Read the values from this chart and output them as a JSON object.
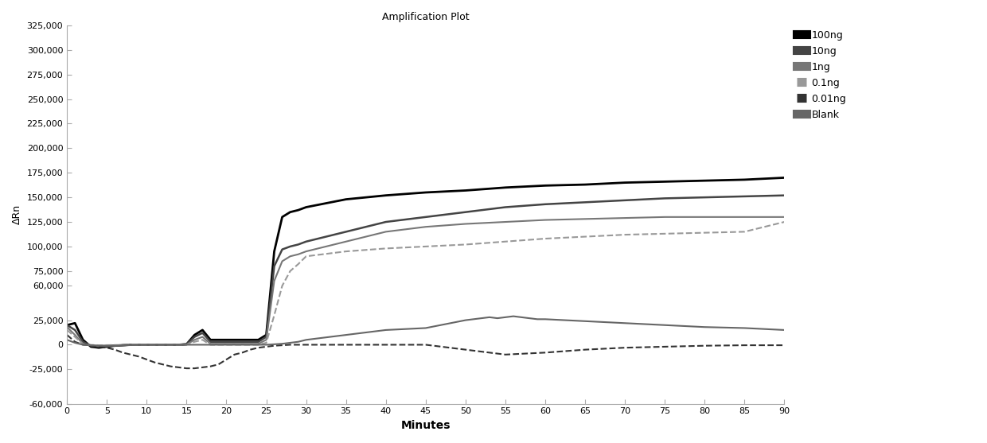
{
  "title": "Amplification Plot",
  "xlabel": "Minutes",
  "ylabel": "ΔRn",
  "xlim": [
    0,
    90
  ],
  "ylim": [
    -60000,
    325000
  ],
  "yticks": [
    -60000,
    -25000,
    0,
    25000,
    60000,
    75000,
    100000,
    125000,
    150000,
    175000,
    200000,
    225000,
    250000,
    275000,
    300000,
    325000
  ],
  "xticks": [
    0,
    5,
    10,
    15,
    20,
    25,
    30,
    35,
    40,
    45,
    50,
    55,
    60,
    65,
    70,
    75,
    80,
    85,
    90
  ],
  "background_color": "#ffffff",
  "legend_entries": [
    "100ng",
    "10ng",
    "1ng",
    "0.1ng",
    "0.01ng",
    "Blank"
  ],
  "series": [
    {
      "label": "100ng",
      "color": "#000000",
      "linewidth": 2.0,
      "linestyle": "solid",
      "points": [
        [
          0,
          20000
        ],
        [
          1,
          22000
        ],
        [
          2,
          5000
        ],
        [
          3,
          -2000
        ],
        [
          4,
          -3000
        ],
        [
          5,
          -2000
        ],
        [
          6,
          -1000
        ],
        [
          7,
          -500
        ],
        [
          8,
          0
        ],
        [
          9,
          0
        ],
        [
          10,
          0
        ],
        [
          11,
          0
        ],
        [
          12,
          0
        ],
        [
          13,
          0
        ],
        [
          14,
          0
        ],
        [
          15,
          500
        ],
        [
          16,
          10000
        ],
        [
          17,
          15000
        ],
        [
          18,
          5000
        ],
        [
          19,
          5000
        ],
        [
          20,
          5000
        ],
        [
          21,
          5000
        ],
        [
          22,
          5000
        ],
        [
          23,
          5000
        ],
        [
          24,
          5000
        ],
        [
          25,
          10000
        ],
        [
          26,
          95000
        ],
        [
          27,
          130000
        ],
        [
          28,
          135000
        ],
        [
          29,
          137000
        ],
        [
          30,
          140000
        ],
        [
          35,
          148000
        ],
        [
          40,
          152000
        ],
        [
          45,
          155000
        ],
        [
          50,
          157000
        ],
        [
          55,
          160000
        ],
        [
          60,
          162000
        ],
        [
          65,
          163000
        ],
        [
          70,
          165000
        ],
        [
          75,
          166000
        ],
        [
          80,
          167000
        ],
        [
          85,
          168000
        ],
        [
          90,
          170000
        ]
      ]
    },
    {
      "label": "10ng",
      "color": "#444444",
      "linewidth": 1.8,
      "linestyle": "solid",
      "points": [
        [
          0,
          20000
        ],
        [
          1,
          15000
        ],
        [
          2,
          3000
        ],
        [
          3,
          -1000
        ],
        [
          4,
          -2000
        ],
        [
          5,
          -1500
        ],
        [
          6,
          -1000
        ],
        [
          7,
          -500
        ],
        [
          8,
          0
        ],
        [
          9,
          0
        ],
        [
          10,
          0
        ],
        [
          11,
          0
        ],
        [
          12,
          0
        ],
        [
          13,
          0
        ],
        [
          14,
          0
        ],
        [
          15,
          500
        ],
        [
          16,
          8000
        ],
        [
          17,
          12000
        ],
        [
          18,
          3000
        ],
        [
          19,
          3000
        ],
        [
          20,
          3000
        ],
        [
          21,
          3000
        ],
        [
          22,
          3000
        ],
        [
          23,
          3000
        ],
        [
          24,
          3000
        ],
        [
          25,
          8000
        ],
        [
          26,
          80000
        ],
        [
          27,
          97000
        ],
        [
          28,
          100000
        ],
        [
          29,
          102000
        ],
        [
          30,
          105000
        ],
        [
          35,
          115000
        ],
        [
          40,
          125000
        ],
        [
          45,
          130000
        ],
        [
          50,
          135000
        ],
        [
          55,
          140000
        ],
        [
          60,
          143000
        ],
        [
          65,
          145000
        ],
        [
          70,
          147000
        ],
        [
          75,
          149000
        ],
        [
          80,
          150000
        ],
        [
          85,
          151000
        ],
        [
          90,
          152000
        ]
      ]
    },
    {
      "label": "1ng",
      "color": "#777777",
      "linewidth": 1.5,
      "linestyle": "solid",
      "points": [
        [
          0,
          18000
        ],
        [
          1,
          10000
        ],
        [
          2,
          1000
        ],
        [
          3,
          -500
        ],
        [
          4,
          -1000
        ],
        [
          5,
          -800
        ],
        [
          6,
          -600
        ],
        [
          7,
          -400
        ],
        [
          8,
          0
        ],
        [
          9,
          0
        ],
        [
          10,
          0
        ],
        [
          11,
          0
        ],
        [
          12,
          0
        ],
        [
          13,
          0
        ],
        [
          14,
          0
        ],
        [
          15,
          200
        ],
        [
          16,
          5000
        ],
        [
          17,
          8000
        ],
        [
          18,
          1000
        ],
        [
          19,
          1000
        ],
        [
          20,
          1000
        ],
        [
          21,
          1000
        ],
        [
          22,
          1000
        ],
        [
          23,
          1000
        ],
        [
          24,
          1000
        ],
        [
          25,
          5000
        ],
        [
          26,
          65000
        ],
        [
          27,
          85000
        ],
        [
          28,
          90000
        ],
        [
          29,
          92000
        ],
        [
          30,
          95000
        ],
        [
          35,
          105000
        ],
        [
          40,
          115000
        ],
        [
          45,
          120000
        ],
        [
          50,
          123000
        ],
        [
          55,
          125000
        ],
        [
          60,
          127000
        ],
        [
          65,
          128000
        ],
        [
          70,
          129000
        ],
        [
          75,
          130000
        ],
        [
          80,
          130000
        ],
        [
          85,
          130000
        ],
        [
          90,
          130000
        ]
      ]
    },
    {
      "label": "0.1ng",
      "color": "#999999",
      "linewidth": 1.5,
      "linestyle": "dashed",
      "points": [
        [
          0,
          15000
        ],
        [
          1,
          8000
        ],
        [
          2,
          500
        ],
        [
          3,
          -200
        ],
        [
          4,
          -500
        ],
        [
          5,
          -400
        ],
        [
          6,
          -300
        ],
        [
          7,
          -200
        ],
        [
          8,
          0
        ],
        [
          9,
          0
        ],
        [
          10,
          0
        ],
        [
          11,
          0
        ],
        [
          12,
          0
        ],
        [
          13,
          0
        ],
        [
          14,
          0
        ],
        [
          15,
          100
        ],
        [
          16,
          3000
        ],
        [
          17,
          5000
        ],
        [
          18,
          0
        ],
        [
          19,
          0
        ],
        [
          20,
          0
        ],
        [
          21,
          0
        ],
        [
          22,
          0
        ],
        [
          23,
          0
        ],
        [
          24,
          0
        ],
        [
          25,
          2000
        ],
        [
          26,
          30000
        ],
        [
          27,
          60000
        ],
        [
          28,
          75000
        ],
        [
          29,
          82000
        ],
        [
          30,
          90000
        ],
        [
          35,
          95000
        ],
        [
          40,
          98000
        ],
        [
          45,
          100000
        ],
        [
          50,
          102000
        ],
        [
          55,
          105000
        ],
        [
          60,
          108000
        ],
        [
          65,
          110000
        ],
        [
          70,
          112000
        ],
        [
          75,
          113000
        ],
        [
          80,
          114000
        ],
        [
          85,
          115000
        ],
        [
          90,
          125000
        ]
      ]
    },
    {
      "label": "0.01ng",
      "color": "#333333",
      "linewidth": 1.5,
      "linestyle": "dashed",
      "points": [
        [
          0,
          10000
        ],
        [
          1,
          3000
        ],
        [
          2,
          0
        ],
        [
          3,
          -500
        ],
        [
          4,
          -2000
        ],
        [
          5,
          -3000
        ],
        [
          6,
          -5000
        ],
        [
          7,
          -8000
        ],
        [
          8,
          -10000
        ],
        [
          9,
          -12000
        ],
        [
          10,
          -15000
        ],
        [
          11,
          -18000
        ],
        [
          12,
          -20000
        ],
        [
          13,
          -22000
        ],
        [
          14,
          -23000
        ],
        [
          15,
          -24000
        ],
        [
          16,
          -24000
        ],
        [
          17,
          -23000
        ],
        [
          18,
          -22000
        ],
        [
          19,
          -20000
        ],
        [
          20,
          -15000
        ],
        [
          21,
          -10000
        ],
        [
          22,
          -8000
        ],
        [
          23,
          -5000
        ],
        [
          24,
          -3000
        ],
        [
          25,
          -2000
        ],
        [
          26,
          -1000
        ],
        [
          27,
          -500
        ],
        [
          28,
          0
        ],
        [
          29,
          0
        ],
        [
          30,
          0
        ],
        [
          35,
          0
        ],
        [
          40,
          0
        ],
        [
          45,
          0
        ],
        [
          50,
          -5000
        ],
        [
          55,
          -10000
        ],
        [
          60,
          -8000
        ],
        [
          65,
          -5000
        ],
        [
          70,
          -3000
        ],
        [
          75,
          -2000
        ],
        [
          80,
          -1000
        ],
        [
          85,
          -500
        ],
        [
          90,
          -500
        ]
      ]
    },
    {
      "label": "Blank",
      "color": "#666666",
      "linewidth": 1.5,
      "linestyle": "solid",
      "points": [
        [
          0,
          5000
        ],
        [
          1,
          2000
        ],
        [
          2,
          0
        ],
        [
          3,
          -500
        ],
        [
          4,
          -1000
        ],
        [
          5,
          -1000
        ],
        [
          6,
          -800
        ],
        [
          7,
          -600
        ],
        [
          8,
          -400
        ],
        [
          9,
          -200
        ],
        [
          10,
          -100
        ],
        [
          11,
          0
        ],
        [
          12,
          0
        ],
        [
          13,
          0
        ],
        [
          14,
          0
        ],
        [
          15,
          0
        ],
        [
          16,
          0
        ],
        [
          17,
          0
        ],
        [
          18,
          0
        ],
        [
          19,
          0
        ],
        [
          20,
          0
        ],
        [
          21,
          0
        ],
        [
          22,
          0
        ],
        [
          23,
          0
        ],
        [
          24,
          0
        ],
        [
          25,
          0
        ],
        [
          26,
          500
        ],
        [
          27,
          1000
        ],
        [
          28,
          2000
        ],
        [
          29,
          3000
        ],
        [
          30,
          5000
        ],
        [
          35,
          10000
        ],
        [
          40,
          15000
        ],
        [
          45,
          17000
        ],
        [
          50,
          25000
        ],
        [
          51,
          26000
        ],
        [
          52,
          27000
        ],
        [
          53,
          28000
        ],
        [
          54,
          27000
        ],
        [
          55,
          28000
        ],
        [
          56,
          29000
        ],
        [
          57,
          28000
        ],
        [
          58,
          27000
        ],
        [
          59,
          26000
        ],
        [
          60,
          26000
        ],
        [
          65,
          24000
        ],
        [
          70,
          22000
        ],
        [
          75,
          20000
        ],
        [
          80,
          18000
        ],
        [
          85,
          17000
        ],
        [
          90,
          15000
        ]
      ]
    }
  ]
}
